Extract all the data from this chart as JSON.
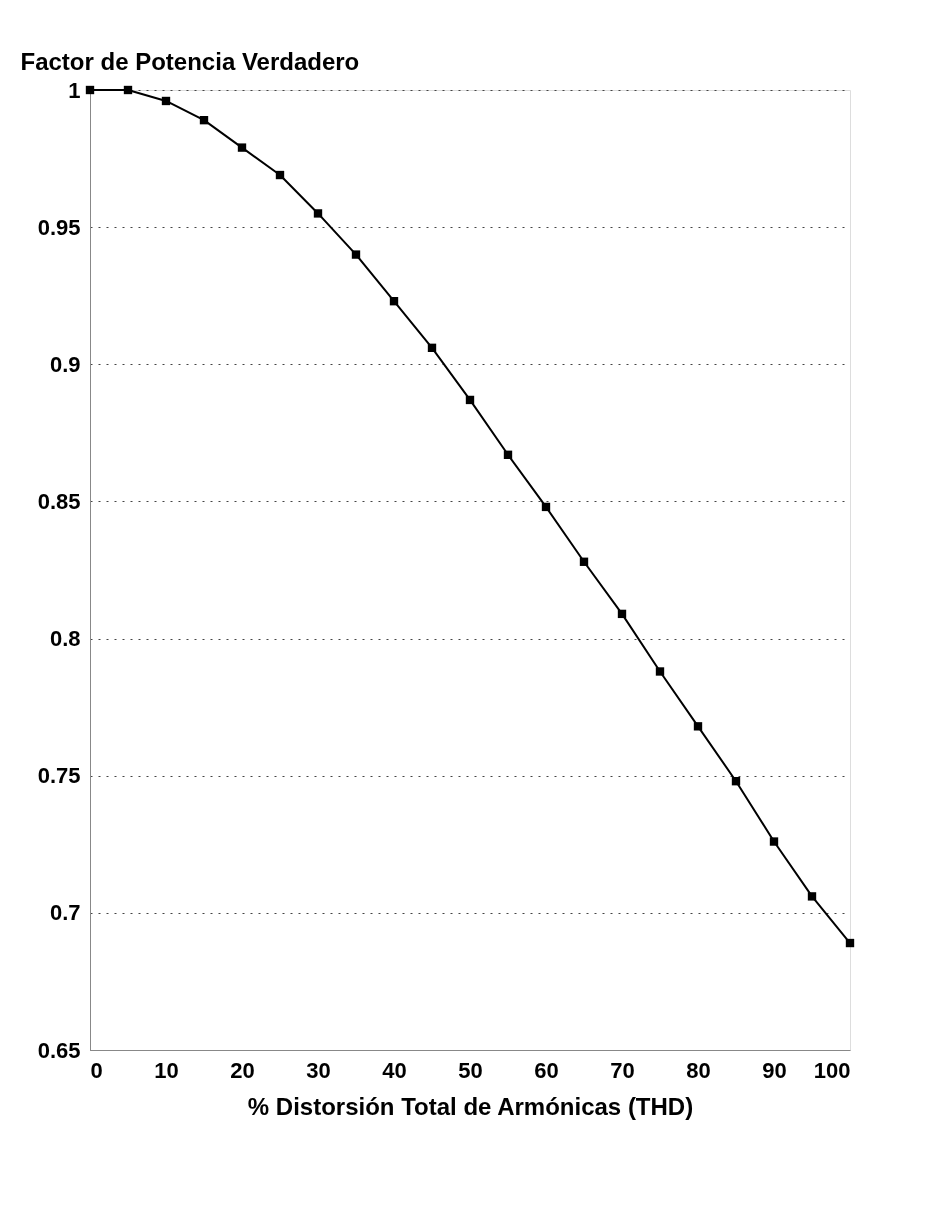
{
  "chart_data": {
    "type": "line",
    "xlabel": "% Distorsión Total de Armónicas (THD)",
    "ylabel": "Factor de Potencia Verdadero",
    "x": [
      0,
      5,
      10,
      15,
      20,
      25,
      30,
      35,
      40,
      45,
      50,
      55,
      60,
      65,
      70,
      75,
      80,
      85,
      90,
      95,
      100
    ],
    "series": [
      {
        "color": "#000000",
        "values": [
          1.0,
          1.0,
          0.996,
          0.989,
          0.979,
          0.969,
          0.955,
          0.94,
          0.923,
          0.906,
          0.887,
          0.867,
          0.848,
          0.828,
          0.809,
          0.788,
          0.768,
          0.748,
          0.726,
          0.706,
          0.689
        ]
      }
    ],
    "xlim": [
      0,
      100
    ],
    "xticks": [
      0,
      10,
      20,
      30,
      40,
      50,
      60,
      70,
      80,
      90,
      100
    ],
    "ylim": [
      0.65,
      1
    ],
    "yticks": [
      0.65,
      0.7,
      0.75,
      0.8,
      0.85,
      0.9,
      0.95,
      1
    ],
    "grid": "y",
    "marker": "square",
    "line_style": "solid"
  }
}
